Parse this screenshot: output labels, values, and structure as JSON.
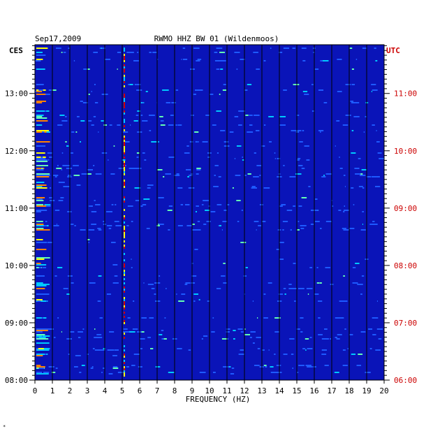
{
  "header": {
    "date": "Sep17,2009",
    "station": "RWMO HHZ BW 01 (Wildenmoos)"
  },
  "footer": {
    "mark": "*"
  },
  "colors": {
    "background": "#0a14b8",
    "grid": "#000000",
    "utc_label": "#cc0000",
    "ces_label": "#000000"
  },
  "chart_data": {
    "type": "heatmap",
    "title": "RWMO HHZ BW 01 (Wildenmoos)",
    "xlabel": "FREQUENCY (HZ)",
    "xlim": [
      0,
      20
    ],
    "x_ticks": [
      "0",
      "1",
      "2",
      "3",
      "4",
      "5",
      "6",
      "7",
      "8",
      "9",
      "10",
      "11",
      "12",
      "13",
      "14",
      "15",
      "16",
      "17",
      "18",
      "19",
      "20"
    ],
    "y_left_label": "CES",
    "y_right_label": "UTC",
    "y_left_ticks": [
      "08:00",
      "09:00",
      "10:00",
      "11:00",
      "12:00",
      "13:00"
    ],
    "y_right_ticks": [
      "06:00",
      "07:00",
      "08:00",
      "09:00",
      "10:00",
      "11:00"
    ],
    "y_range_hours_ces": [
      8.0,
      13.85
    ],
    "grid": "vertical lines at each 1 Hz",
    "colormap": [
      "#0a14b8",
      "#1e5aff",
      "#00c8ff",
      "#64ffb4",
      "#ffff00",
      "#ff8000",
      "#d00000"
    ]
  }
}
